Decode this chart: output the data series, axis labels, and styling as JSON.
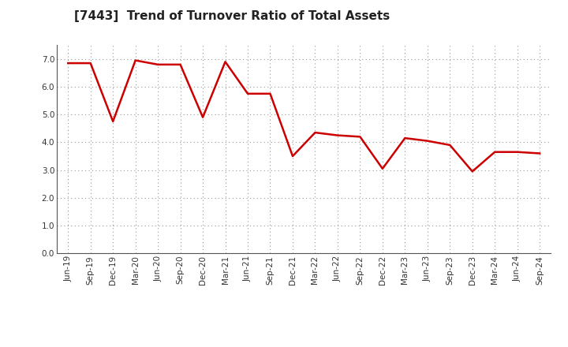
{
  "title": "[7443]  Trend of Turnover Ratio of Total Assets",
  "line_color": "#cc0000",
  "background_color": "#ffffff",
  "grid_color": "#999999",
  "x_labels": [
    "Jun-19",
    "Sep-19",
    "Dec-19",
    "Mar-20",
    "Jun-20",
    "Sep-20",
    "Dec-20",
    "Mar-21",
    "Jun-21",
    "Sep-21",
    "Dec-21",
    "Mar-22",
    "Jun-22",
    "Sep-22",
    "Dec-22",
    "Mar-23",
    "Jun-23",
    "Sep-23",
    "Dec-23",
    "Mar-24",
    "Jun-24",
    "Sep-24"
  ],
  "values": [
    6.85,
    6.85,
    4.75,
    6.95,
    6.8,
    6.8,
    4.9,
    6.9,
    5.75,
    5.75,
    3.5,
    4.35,
    4.25,
    4.2,
    3.05,
    4.15,
    4.05,
    3.9,
    2.95,
    3.65,
    3.65,
    3.6
  ],
  "ylim": [
    0.0,
    7.5
  ],
  "yticks": [
    0.0,
    1.0,
    2.0,
    3.0,
    4.0,
    5.0,
    6.0,
    7.0
  ],
  "title_fontsize": 11,
  "tick_fontsize": 7.5,
  "line_width": 1.8
}
